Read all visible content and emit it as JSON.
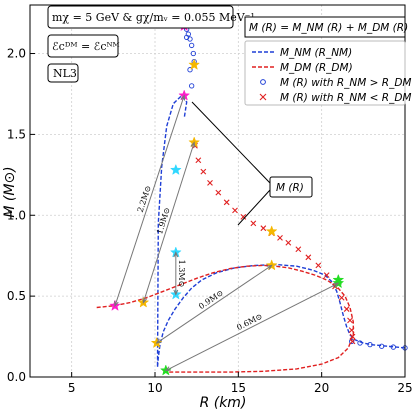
{
  "chart_data": {
    "type": "line",
    "title": "",
    "xlabel": "R (km)",
    "ylabel": "M (M⊙)",
    "xlim": [
      2.5,
      25
    ],
    "ylim": [
      0,
      2.3
    ],
    "xticks": [
      5,
      10,
      15,
      20,
      25
    ],
    "yticks": [
      0.0,
      0.5,
      1.0,
      1.5,
      2.0
    ],
    "grid": true,
    "info_box_lines": [
      "mχ = 5 GeV  &  gχ/mᵥ = 0.055 MeV⁻¹",
      "ℰcᴰᴹ = ℰcᴺᴹ"
    ],
    "eos_label": "NL3",
    "relation_box": "M (R) = M_NM (R) + M_DM (R)",
    "callout_label": "M (R)",
    "legend_position": "top-right",
    "legend": [
      {
        "label": "M_NM (R_NM)",
        "style": "blue-dashed"
      },
      {
        "label": "M_DM (R_DM)",
        "style": "red-dashed"
      },
      {
        "label": "M (R) with R_NM > R_DM",
        "style": "blue-circle"
      },
      {
        "label": "M (R) with R_NM < R_DM",
        "style": "red-x"
      }
    ],
    "series": [
      {
        "name": "M_NM (R_NM)",
        "color": "#1f3fd6",
        "x": [
          25.0,
          24.0,
          23.0,
          22.5,
          22.0,
          21.7,
          21.5,
          21.3,
          21.1,
          20.9,
          20.6,
          20.2,
          19.5,
          18.5,
          17.3,
          16.0,
          14.8,
          13.7,
          12.8,
          12.2,
          11.7,
          11.2,
          10.8,
          10.5,
          10.3,
          10.2,
          10.15,
          10.2,
          10.4,
          10.7,
          11.1,
          11.6,
          11.9,
          11.75
        ],
        "y": [
          0.18,
          0.19,
          0.2,
          0.21,
          0.23,
          0.26,
          0.31,
          0.38,
          0.46,
          0.53,
          0.59,
          0.63,
          0.66,
          0.685,
          0.695,
          0.69,
          0.675,
          0.645,
          0.6,
          0.55,
          0.49,
          0.42,
          0.35,
          0.28,
          0.2,
          0.12,
          0.06,
          0.95,
          1.3,
          1.55,
          1.69,
          1.74,
          1.7,
          1.6
        ]
      },
      {
        "name": "M_DM (R_DM)",
        "color": "#e02020",
        "x": [
          6.5,
          7.5,
          8.5,
          9.5,
          10.5,
          11.5,
          12.5,
          13.5,
          14.5,
          15.5,
          16.5,
          17.2,
          18.0,
          18.8,
          19.6,
          20.3,
          20.9,
          21.4,
          21.7,
          21.9,
          21.9,
          21.6,
          21.0,
          20.0,
          18.5,
          16.5,
          14.5,
          13.0,
          12.0,
          11.0,
          10.5
        ],
        "y": [
          0.43,
          0.44,
          0.46,
          0.49,
          0.53,
          0.57,
          0.61,
          0.645,
          0.67,
          0.685,
          0.69,
          0.685,
          0.675,
          0.655,
          0.63,
          0.6,
          0.56,
          0.5,
          0.43,
          0.34,
          0.26,
          0.18,
          0.12,
          0.08,
          0.05,
          0.035,
          0.03,
          0.03,
          0.03,
          0.03,
          0.03
        ]
      }
    ],
    "combined_nm_gt_dm": {
      "name": "M (R) with R_NM > R_DM",
      "x": [
        25.0,
        24.3,
        23.6,
        22.9,
        22.3,
        21.8,
        12.35,
        12.3,
        12.2,
        12.1,
        12.0,
        11.9,
        11.85,
        11.9,
        12.1,
        12.2
      ],
      "y": [
        0.18,
        0.185,
        0.19,
        0.2,
        0.21,
        0.22,
        1.95,
        2.0,
        2.05,
        2.09,
        2.12,
        2.15,
        2.17,
        2.1,
        1.9,
        1.8
      ]
    },
    "combined_nm_lt_dm": {
      "name": "M (R) with R_NM < R_DM",
      "x": [
        12.4,
        12.6,
        12.9,
        13.3,
        13.8,
        14.3,
        14.8,
        15.3,
        15.9,
        16.5,
        17.0,
        17.5,
        18.0,
        18.6,
        19.2,
        19.8,
        20.3,
        20.8,
        21.2,
        21.5,
        21.7,
        21.8,
        21.85,
        21.85
      ],
      "y": [
        1.43,
        1.34,
        1.27,
        1.2,
        1.14,
        1.08,
        1.03,
        0.99,
        0.95,
        0.92,
        0.89,
        0.86,
        0.83,
        0.79,
        0.74,
        0.69,
        0.63,
        0.56,
        0.49,
        0.42,
        0.35,
        0.29,
        0.25,
        0.22
      ]
    },
    "star_markers": [
      {
        "x": 11.75,
        "y": 2.17,
        "color": "#ff1dcb"
      },
      {
        "x": 11.75,
        "y": 1.74,
        "color": "#ff1dcb"
      },
      {
        "x": 7.6,
        "y": 0.44,
        "color": "#ff1dcb"
      },
      {
        "x": 12.35,
        "y": 1.93,
        "color": "#f5b700"
      },
      {
        "x": 12.35,
        "y": 1.45,
        "color": "#f5b700"
      },
      {
        "x": 9.3,
        "y": 0.46,
        "color": "#f5b700"
      },
      {
        "x": 17.0,
        "y": 0.69,
        "color": "#f5b700"
      },
      {
        "x": 17.0,
        "y": 0.9,
        "color": "#f5b700"
      },
      {
        "x": 11.25,
        "y": 1.28,
        "color": "#30d8ff"
      },
      {
        "x": 11.25,
        "y": 0.77,
        "color": "#30d8ff"
      },
      {
        "x": 11.25,
        "y": 0.51,
        "color": "#30d8ff"
      },
      {
        "x": 10.1,
        "y": 0.21,
        "color": "#f5b700"
      },
      {
        "x": 21.0,
        "y": 0.6,
        "color": "#22dd22"
      },
      {
        "x": 21.0,
        "y": 0.58,
        "color": "#22dd22"
      },
      {
        "x": 10.65,
        "y": 0.04,
        "color": "#22dd22"
      }
    ],
    "annotations": [
      {
        "text": "2.2M⊙",
        "x1": 11.75,
        "y1": 1.74,
        "x2": 7.6,
        "y2": 0.44
      },
      {
        "text": "1.9M⊙",
        "x1": 12.35,
        "y1": 1.45,
        "x2": 9.3,
        "y2": 0.46
      },
      {
        "text": "1.3M⊙",
        "x1": 11.25,
        "y1": 0.77,
        "x2": 11.25,
        "y2": 0.51
      },
      {
        "text": "0.9M⊙",
        "x1": 17.0,
        "y1": 0.69,
        "x2": 10.1,
        "y2": 0.21
      },
      {
        "text": "0.6M⊙",
        "x1": 21.0,
        "y1": 0.58,
        "x2": 10.65,
        "y2": 0.04
      }
    ]
  }
}
